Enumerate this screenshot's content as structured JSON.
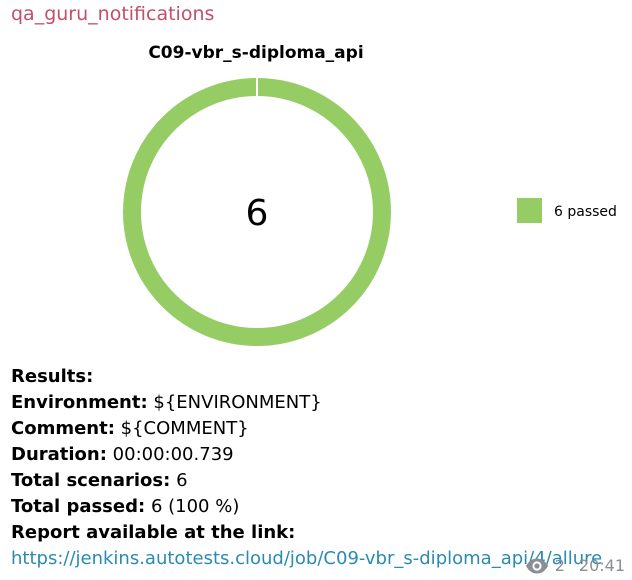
{
  "message": {
    "sender": "qa_guru_notifications",
    "views": "2",
    "time": "20:41"
  },
  "chart_data": {
    "type": "pie",
    "title": "C09-vbr_s-diploma_api",
    "center_label": "6",
    "series": [
      {
        "name": "6 passed",
        "value": 6,
        "color": "#96cc64"
      }
    ],
    "legend_position": "right"
  },
  "results": {
    "heading": "Results:",
    "environment_label": "Environment:",
    "environment_value": "${ENVIRONMENT}",
    "comment_label": "Comment:",
    "comment_value": "${COMMENT}",
    "duration_label": "Duration:",
    "duration_value": "00:00:00.739",
    "total_scenarios_label": "Total scenarios:",
    "total_scenarios_value": "6",
    "total_passed_label": "Total passed:",
    "total_passed_value": "6 (100 %)",
    "report_label": "Report available at the link:",
    "report_url": "https://jenkins.autotests.cloud/job/C09-vbr_s-diploma_api/4/allure"
  },
  "colors": {
    "sender": "#c24f6b",
    "link": "#2a8ab3",
    "passed": "#96cc64"
  }
}
